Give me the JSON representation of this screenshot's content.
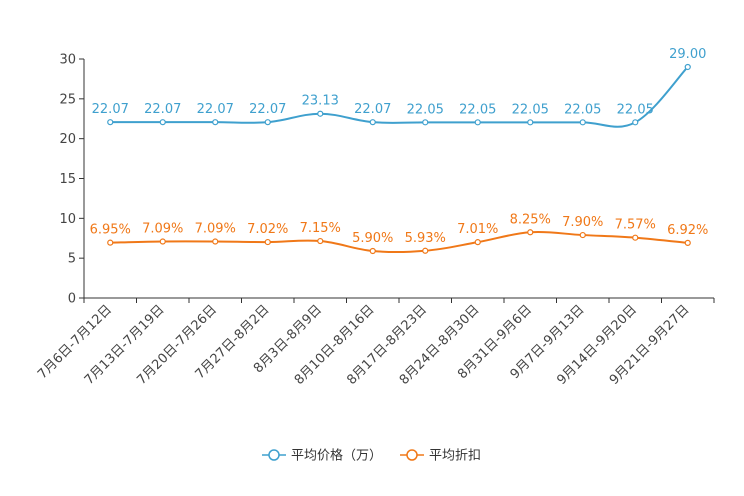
{
  "chart_data": {
    "type": "line",
    "categories": [
      "7月6日-7月12日",
      "7月13日-7月19日",
      "7月20日-7月26日",
      "7月27日-8月2日",
      "8月3日-8月9日",
      "8月10日-8月16日",
      "8月17日-8月23日",
      "8月24日-8月30日",
      "8月31日-9月6日",
      "9月7日-9月13日",
      "9月14日-9月20日",
      "9月21日-9月27日"
    ],
    "ylim": [
      0,
      30
    ],
    "yticks": [
      0,
      5,
      10,
      15,
      20,
      25,
      30
    ],
    "ytick_labels": [
      "0",
      "5",
      "10",
      "15",
      "20",
      "25",
      "30"
    ],
    "series": [
      {
        "name": "平均价格（万）",
        "color": "#3fa0ce",
        "values": [
          22.07,
          22.07,
          22.07,
          22.07,
          23.13,
          22.07,
          22.05,
          22.05,
          22.05,
          22.05,
          22.05,
          29.0
        ],
        "labels": [
          "22.07",
          "22.07",
          "22.07",
          "22.07",
          "23.13",
          "22.07",
          "22.05",
          "22.05",
          "22.05",
          "22.05",
          "22.05",
          "29.00"
        ]
      },
      {
        "name": "平均折扣",
        "color": "#f07818",
        "values": [
          6.95,
          7.09,
          7.09,
          7.02,
          7.15,
          5.9,
          5.93,
          7.01,
          8.25,
          7.9,
          7.57,
          6.92
        ],
        "labels": [
          "6.95%",
          "7.09%",
          "7.09%",
          "7.02%",
          "7.15%",
          "5.90%",
          "5.93%",
          "7.01%",
          "8.25%",
          "7.90%",
          "7.57%",
          "6.92%"
        ]
      }
    ],
    "legend_position": "bottom-center"
  }
}
